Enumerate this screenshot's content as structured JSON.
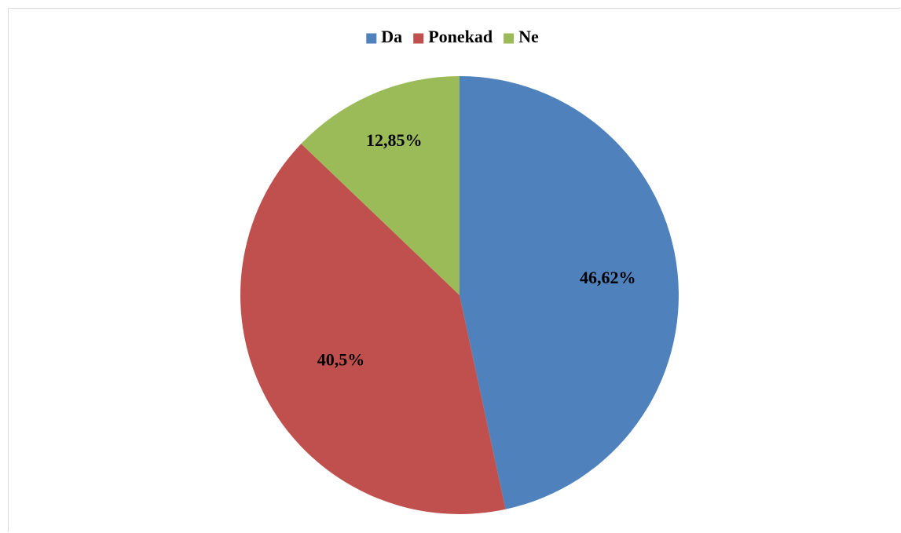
{
  "chart_data": {
    "type": "pie",
    "title": "",
    "categories": [
      "Da",
      "Ponekad",
      "Ne"
    ],
    "values": [
      46.62,
      40.5,
      12.85
    ],
    "value_labels": [
      "46,62%",
      "40,5%",
      "12,85%"
    ],
    "colors": [
      "#4F81BD",
      "#C0504D",
      "#9BBB59"
    ],
    "start_angle": "12 o'clock",
    "direction": "clockwise",
    "legend": {
      "position": "top",
      "entries": [
        "Da",
        "Ponekad",
        "Ne"
      ]
    }
  }
}
